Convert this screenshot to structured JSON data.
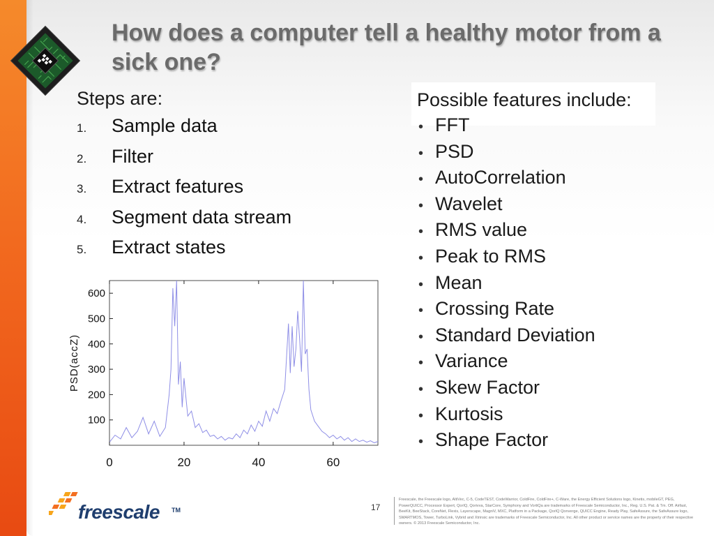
{
  "slide": {
    "title": "How does a computer tell a healthy motor from a sick one?",
    "page_number": "17"
  },
  "steps": {
    "heading": "Steps are:",
    "items": [
      {
        "num": "1.",
        "text": "Sample data"
      },
      {
        "num": "2.",
        "text": "Filter"
      },
      {
        "num": "3.",
        "text": "Extract features"
      },
      {
        "num": "4.",
        "text": "Segment data stream"
      },
      {
        "num": "5.",
        "text": "Extract states"
      }
    ]
  },
  "features": {
    "heading": "Possible features include:",
    "bullet": "•",
    "items": [
      "FFT",
      "PSD",
      "AutoCorrelation",
      "Wavelet",
      "RMS value",
      "Peak to RMS",
      "Mean",
      "Crossing Rate",
      "Standard Deviation",
      "Variance",
      "Skew Factor",
      "Kurtosis",
      "Shape Factor"
    ]
  },
  "footer": {
    "logo_text": "freescale",
    "trademark": "TM",
    "legal": "Freescale, the Freescale logo, AltiVec, C-5, CodeTEST, CodeWarrior, ColdFire, ColdFire+, C-Ware, the Energy Efficient Solutions logo, Kinetis, mobileGT, PEG, PowerQUICC, Processor Expert, QorIQ, Qorivva, StarCore, Symphony and VortiQa are trademarks of Freescale Semiconductor, Inc., Reg. U.S. Pat. & Tm. Off. Airfast, BeeKit, BeeStack, CoreNet, Flexis, Layerscape, MagniV, MXC, Platform in a Package, QorIQ Qonverge, QUICC Engine, Ready Play, SafeAssure, the SafeAssure logo, SMARTMOS, Tower, TurboLink, Vybrid and Xtrinsic are trademarks of Freescale Semiconductor, Inc. All other product or service names are the property of their respective owners. © 2013 Freescale Semiconductor, Inc."
  },
  "colors": {
    "accent_orange": "#f26a1f",
    "title_gray": "#6b6b6b",
    "brand_blue": "#1f3e6e",
    "series_blue": "#8e8ee6"
  },
  "chart_data": {
    "type": "line",
    "title": "",
    "xlabel": "",
    "ylabel": "PSD(accZ)",
    "xlim": [
      0,
      72
    ],
    "ylim": [
      0,
      650
    ],
    "x_ticks": [
      0,
      20,
      40,
      60
    ],
    "y_ticks": [
      100,
      200,
      300,
      400,
      500,
      600
    ],
    "grid": false,
    "series": [
      {
        "x": [
          0,
          1.5,
          3,
          4.5,
          6,
          7.5,
          9,
          10.5,
          12,
          13.5,
          15,
          16,
          16.5,
          17,
          17.5,
          18,
          18.5,
          19,
          19.5,
          20,
          21,
          22,
          23,
          24,
          25,
          26,
          27,
          28,
          29,
          30,
          31,
          32,
          33,
          34,
          35,
          36,
          37,
          38,
          39,
          40,
          41,
          42,
          43,
          44,
          45,
          46,
          47,
          48,
          48.5,
          49,
          49.5,
          50,
          50.5,
          51,
          51.5,
          52,
          52.5,
          53,
          53.5,
          54,
          55,
          56,
          57,
          58,
          59,
          60,
          61,
          62,
          63,
          64,
          65,
          66,
          67,
          68,
          69,
          70,
          71,
          72
        ],
        "y": [
          12,
          40,
          25,
          70,
          30,
          55,
          110,
          45,
          95,
          35,
          70,
          200,
          300,
          620,
          470,
          650,
          240,
          330,
          150,
          265,
          115,
          135,
          70,
          85,
          50,
          60,
          35,
          40,
          25,
          35,
          20,
          30,
          25,
          45,
          30,
          60,
          45,
          80,
          55,
          95,
          75,
          135,
          95,
          145,
          125,
          175,
          220,
          480,
          285,
          470,
          310,
          380,
          530,
          420,
          290,
          650,
          360,
          380,
          220,
          140,
          95,
          75,
          55,
          45,
          30,
          40,
          25,
          35,
          20,
          30,
          15,
          25,
          15,
          20,
          12,
          18,
          10,
          15
        ]
      }
    ]
  }
}
